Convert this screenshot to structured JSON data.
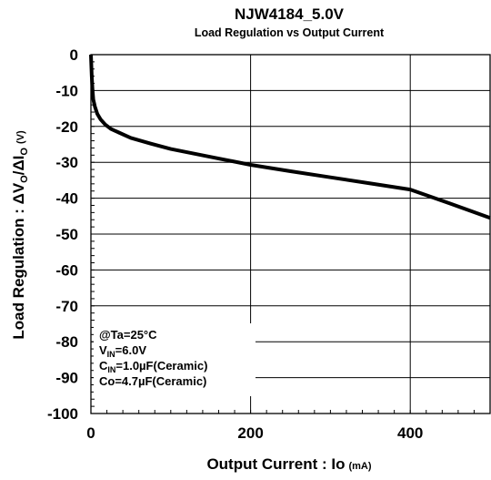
{
  "chart_data": {
    "type": "line",
    "title": "NJW4184_5.0V",
    "subtitle": "Load Regulation vs Output Current",
    "xlabel": "Output Current : Io",
    "xlabel_unit": "(mA)",
    "ylabel_prefix": "Load Regulation : ",
    "ylabel_delta_v": "ΔV",
    "ylabel_v_sub": "O",
    "ylabel_slash": "/",
    "ylabel_delta_i": "ΔI",
    "ylabel_i_sub": "O",
    "ylabel_unit": "(V)",
    "xlim": [
      0,
      500
    ],
    "ylim": [
      -100,
      0
    ],
    "x_ticks": [
      0,
      200,
      400
    ],
    "x_tick_labels": [
      "0",
      "200",
      "400"
    ],
    "y_ticks": [
      0,
      -10,
      -20,
      -30,
      -40,
      -50,
      -60,
      -70,
      -80,
      -90,
      -100
    ],
    "y_tick_labels": [
      "0",
      "-10",
      "-20",
      "-30",
      "-40",
      "-50",
      "-60",
      "-70",
      "-80",
      "-90",
      "-100"
    ],
    "grid": true,
    "line_color": "#000000",
    "series": [
      {
        "x": [
          0,
          1,
          2,
          3,
          5,
          8,
          12,
          18,
          25,
          35,
          50,
          75,
          100,
          150,
          200,
          250,
          300,
          350,
          400,
          450,
          500
        ],
        "y": [
          0,
          -6,
          -10,
          -12.5,
          -14.5,
          -16.5,
          -18,
          -19.5,
          -20.7,
          -21.7,
          -23.2,
          -24.8,
          -26.3,
          -28.5,
          -30.7,
          -32.5,
          -34.2,
          -35.9,
          -37.6,
          -41.5,
          -45.5
        ]
      }
    ],
    "conditions": {
      "ta_line": "@Ta=25°C",
      "vin_main": "V",
      "vin_sub": "IN",
      "vin_val": "=6.0V",
      "cin_main": "C",
      "cin_sub": "IN",
      "cin_val": "=1.0µF(Ceramic)",
      "co_line": "Co=4.7µF(Ceramic)"
    }
  }
}
